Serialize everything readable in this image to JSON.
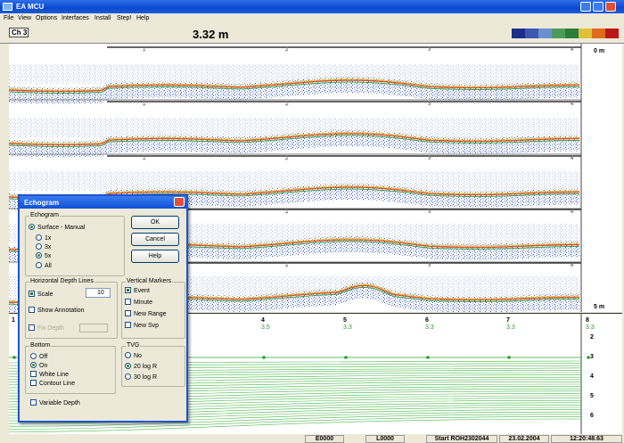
{
  "window": {
    "title": "EA MCU"
  },
  "menu": [
    "File",
    "View",
    "Options",
    "Interfaces",
    "Install",
    "Step!",
    "Help"
  ],
  "toolbar": {
    "channel": "Ch 3",
    "depth": "3.32 m"
  },
  "echogram": {
    "scale_top": "0 m",
    "scale_bottom": "5 m",
    "markers": [
      "1",
      "2",
      "3",
      "4",
      "5"
    ]
  },
  "plot": {
    "markers": [
      {
        "label": "1",
        "value": null
      },
      {
        "label": "4",
        "value": "3.5"
      },
      {
        "label": "5",
        "value": "3.3"
      },
      {
        "label": "6",
        "value": "3.3"
      },
      {
        "label": "7",
        "value": "3.3"
      },
      {
        "label": "8",
        "value": "3.3"
      }
    ],
    "depth_labels": [
      "2",
      "3",
      "4",
      "5",
      "6"
    ]
  },
  "dialog": {
    "title": "Echogram",
    "buttons": [
      "OK",
      "Cancel",
      "Help"
    ],
    "echogram_group": {
      "title": "Echogram",
      "options": [
        {
          "label": "Surface - Manual",
          "checked": true
        },
        {
          "label": "1x",
          "checked": false
        },
        {
          "label": "3x",
          "checked": false
        },
        {
          "label": "5x",
          "checked": true
        },
        {
          "label": "All",
          "checked": false
        }
      ]
    },
    "depth_lines": {
      "title": "Horizontal Depth Lines",
      "scale": {
        "label": "Scale",
        "checked": true,
        "value": "10"
      },
      "annotation": {
        "label": "Show Annotation",
        "checked": false
      },
      "fix_depth": {
        "label": "Fix Depth",
        "checked": false
      }
    },
    "vertical_markers": {
      "title": "Vertical Markers",
      "options": [
        {
          "label": "Event",
          "checked": true
        },
        {
          "label": "Minute",
          "checked": false
        },
        {
          "label": "New Range",
          "checked": false
        },
        {
          "label": "New Svp",
          "checked": false
        }
      ]
    },
    "bottom": {
      "title": "Bottom",
      "options": [
        {
          "label": "Off",
          "checked": false
        },
        {
          "label": "On",
          "checked": true
        },
        {
          "label": "White Line",
          "checked": false
        },
        {
          "label": "Contour Line",
          "checked": false
        }
      ]
    },
    "tvg": {
      "title": "TVG",
      "options": [
        {
          "label": "No",
          "checked": false
        },
        {
          "label": "20 log R",
          "checked": true
        },
        {
          "label": "30 log R",
          "checked": false
        }
      ]
    },
    "variable_depth": {
      "label": "Variable Depth",
      "checked": false
    }
  },
  "status": [
    "E0000",
    "L0000",
    "Start  ROH2302044",
    "23.02.2004",
    "12:20:48.63"
  ]
}
